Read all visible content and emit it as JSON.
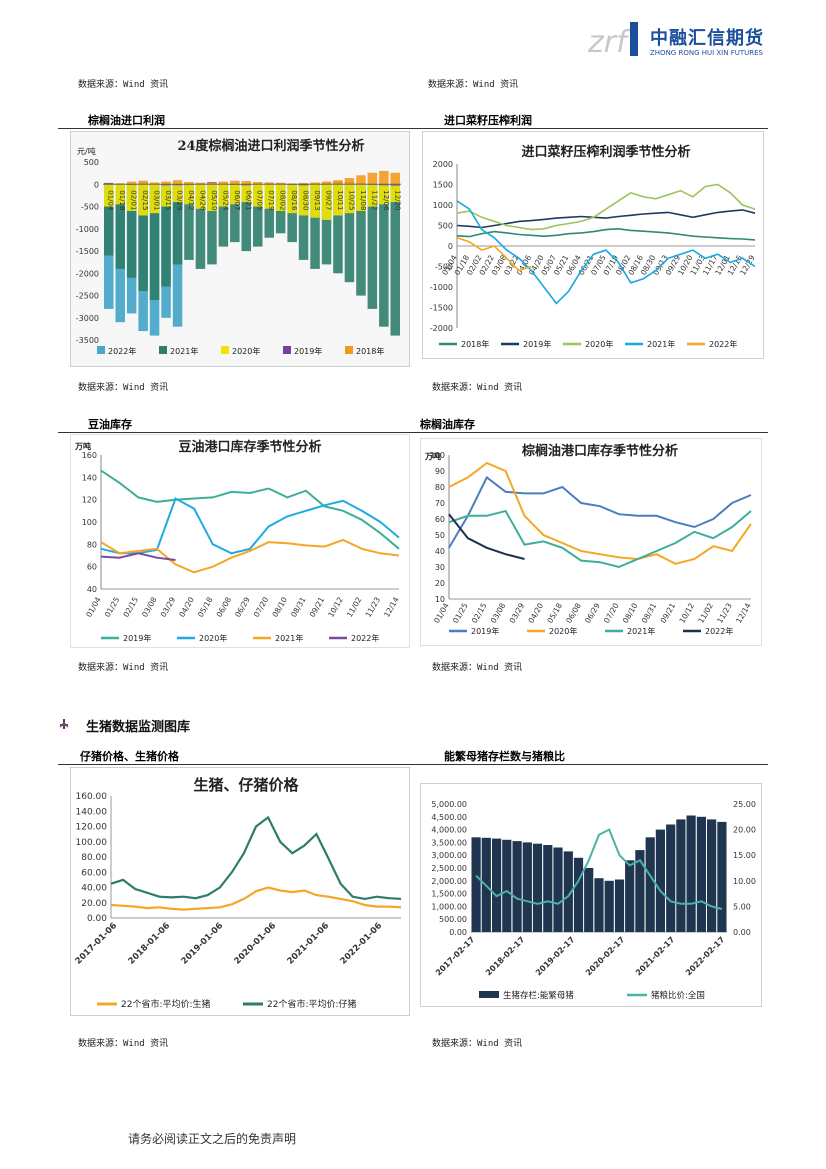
{
  "header": {
    "logo_mark": "zrf",
    "logo_cn": "中融汇信期货",
    "logo_en": "ZHONG RONG HUI XIN FUTURES"
  },
  "sources": {
    "top_left": "数据来源：Wind 资讯",
    "top_right": "数据来源：Wind 资讯",
    "row1_left": "数据来源：Wind 资讯",
    "row1_right": "数据来源：Wind 资讯",
    "row2_left": "数据来源：Wind 资讯",
    "row2_right": "数据来源：Wind 资讯",
    "row3_left": "数据来源：Wind 资讯",
    "row3_right": "数据来源：Wind 资讯"
  },
  "sections": {
    "palm_profit": "棕榈油进口利润",
    "rapeseed_profit": "进口菜籽压榨利润",
    "soy_stock": "豆油库存",
    "palm_stock": "棕榈油库存",
    "hog_header": "生猪数据监测图库",
    "piglet_price": "仔猪价格、生猪价格",
    "sow_ratio": "能繁母猪存栏数与猪粮比"
  },
  "footer": {
    "disclaimer": "请务必阅读正文之后的免责声明"
  },
  "chart_data": [
    {
      "id": "palm_profit",
      "type": "bar",
      "title": "24度棕榈油进口利润季节性分析",
      "ylabel": "元/吨",
      "ylim": [
        -3500,
        500
      ],
      "yticks": [
        500,
        0,
        -500,
        -1000,
        -1500,
        -2000,
        -2500,
        -3000,
        -3500
      ],
      "categories": [
        "01/04",
        "01/18",
        "02/01",
        "02/15",
        "03/01",
        "03/15",
        "03/29",
        "04/12",
        "04/26",
        "05/10",
        "05/24",
        "06/07",
        "06/21",
        "07/05",
        "07/19",
        "08/02",
        "08/16",
        "08/30",
        "09/13",
        "09/27",
        "10/11",
        "10/25",
        "11/08",
        "11/22",
        "12/06",
        "12/20"
      ],
      "series": [
        {
          "name": "2022年",
          "color": "#4aa8c8",
          "values": [
            -2800,
            -3100,
            -2900,
            -3300,
            -3400,
            -3000,
            -3200,
            null,
            null,
            null,
            null,
            null,
            null,
            null,
            null,
            null,
            null,
            null,
            null,
            null,
            null,
            null,
            null,
            null,
            null,
            null
          ]
        },
        {
          "name": "2021年",
          "color": "#2e7d6b",
          "values": [
            -1600,
            -1900,
            -2100,
            -2400,
            -2600,
            -2300,
            -1800,
            -1700,
            -1900,
            -1800,
            -1400,
            -1300,
            -1500,
            -1400,
            -1200,
            -1100,
            -1300,
            -1700,
            -1900,
            -1800,
            -2000,
            -2200,
            -2500,
            -2800,
            -3200,
            -3400
          ]
        },
        {
          "name": "2020年",
          "color": "#f2e600",
          "values": [
            -500,
            -450,
            -600,
            -700,
            -650,
            -500,
            -400,
            -450,
            -550,
            -600,
            -500,
            -450,
            -400,
            -500,
            -550,
            -600,
            -650,
            -700,
            -750,
            -800,
            -700,
            -650,
            -600,
            -500,
            -450,
            -400
          ]
        },
        {
          "name": "2019年",
          "color": "#7a3fa0",
          "values": [
            30,
            20,
            10,
            40,
            20,
            0,
            -20,
            10,
            30,
            50,
            20,
            10,
            -10,
            20,
            40,
            30,
            10,
            0,
            20,
            40,
            60,
            50,
            30,
            10,
            0,
            -30
          ]
        },
        {
          "name": "2018年",
          "color": "#f29a1e",
          "values": [
            10,
            20,
            60,
            80,
            40,
            60,
            90,
            50,
            30,
            40,
            60,
            80,
            70,
            50,
            40,
            30,
            20,
            30,
            40,
            60,
            90,
            140,
            200,
            260,
            300,
            260
          ]
        }
      ]
    },
    {
      "id": "rapeseed_profit",
      "type": "line",
      "title": "进口菜籽压榨利润季节性分析",
      "ylim": [
        -2000,
        2000
      ],
      "yticks": [
        2000,
        1500,
        1000,
        500,
        0,
        -500,
        -1000,
        -1500,
        -2000
      ],
      "categories": [
        "01/04",
        "01/18",
        "02/02",
        "02/22",
        "03/08",
        "03/22",
        "04/06",
        "04/20",
        "05/07",
        "05/21",
        "06/04",
        "06/21",
        "07/05",
        "07/19",
        "08/02",
        "08/16",
        "08/30",
        "09/13",
        "09/29",
        "10/20",
        "11/03",
        "11/17",
        "12/01",
        "12/15",
        "12/29"
      ],
      "series": [
        {
          "name": "2018年",
          "color": "#2e8b6e",
          "values": [
            250,
            230,
            300,
            350,
            320,
            280,
            260,
            240,
            260,
            300,
            320,
            350,
            400,
            420,
            380,
            360,
            340,
            320,
            280,
            240,
            220,
            200,
            180,
            170,
            150
          ]
        },
        {
          "name": "2019年",
          "color": "#1f3a5f",
          "values": [
            500,
            480,
            450,
            500,
            550,
            600,
            620,
            650,
            680,
            700,
            720,
            700,
            680,
            720,
            750,
            780,
            800,
            820,
            760,
            700,
            760,
            820,
            850,
            880,
            800
          ]
        },
        {
          "name": "2020年",
          "color": "#9cc45a",
          "values": [
            800,
            850,
            700,
            600,
            500,
            450,
            400,
            420,
            500,
            550,
            600,
            700,
            900,
            1100,
            1300,
            1200,
            1150,
            1250,
            1350,
            1200,
            1450,
            1500,
            1300,
            1000,
            900
          ]
        },
        {
          "name": "2021年",
          "color": "#1aa8e0",
          "values": [
            1100,
            900,
            400,
            200,
            -100,
            -300,
            -600,
            -1000,
            -1400,
            -1100,
            -600,
            -200,
            -100,
            -400,
            -900,
            -800,
            -600,
            -300,
            -200,
            -100,
            -300,
            -200,
            -400,
            -300,
            -500
          ]
        },
        {
          "name": "2022年",
          "color": "#f5a623",
          "values": [
            200,
            100,
            -100,
            0,
            -300,
            -600,
            -500,
            null,
            null,
            null,
            null,
            null,
            null,
            null,
            null,
            null,
            null,
            null,
            null,
            null,
            null,
            null,
            null,
            null,
            null
          ]
        }
      ]
    },
    {
      "id": "soy_stock",
      "type": "line",
      "title": "豆油港口库存季节性分析",
      "ylabel": "万吨",
      "ylim": [
        40,
        160
      ],
      "yticks": [
        160,
        140,
        120,
        100,
        80,
        60,
        40
      ],
      "categories": [
        "01/04",
        "01/25",
        "02/15",
        "03/08",
        "03/29",
        "04/20",
        "05/18",
        "06/08",
        "06/29",
        "07/20",
        "08/10",
        "08/31",
        "09/21",
        "10/12",
        "11/02",
        "11/23",
        "12/14"
      ],
      "series": [
        {
          "name": "2019年",
          "color": "#3dae9a",
          "values": [
            146,
            135,
            122,
            118,
            120,
            121,
            122,
            127,
            126,
            130,
            122,
            128,
            114,
            110,
            102,
            90,
            76
          ]
        },
        {
          "name": "2020年",
          "color": "#21a9e1",
          "values": [
            76,
            72,
            72,
            75,
            121,
            112,
            80,
            72,
            76,
            96,
            105,
            110,
            115,
            119,
            110,
            100,
            86
          ]
        },
        {
          "name": "2021年",
          "color": "#f5a623",
          "values": [
            82,
            72,
            74,
            76,
            62,
            55,
            60,
            68,
            74,
            82,
            81,
            79,
            78,
            84,
            76,
            72,
            70
          ]
        },
        {
          "name": "2022年",
          "color": "#7a4aa0",
          "values": [
            69,
            68,
            72,
            68,
            66,
            null,
            null,
            null,
            null,
            null,
            null,
            null,
            null,
            null,
            null,
            null,
            null
          ]
        }
      ]
    },
    {
      "id": "palm_stock",
      "type": "line",
      "title": "棕榈油港口库存季节性分析",
      "ylabel": "万吨",
      "ylim": [
        10,
        100
      ],
      "yticks": [
        100,
        90,
        80,
        70,
        60,
        50,
        40,
        30,
        20,
        10
      ],
      "categories": [
        "01/04",
        "01/25",
        "02/15",
        "03/08",
        "03/29",
        "04/20",
        "05/18",
        "06/08",
        "06/29",
        "07/20",
        "08/10",
        "08/31",
        "09/21",
        "10/12",
        "11/02",
        "11/23",
        "12/14"
      ],
      "series": [
        {
          "name": "2019年",
          "color": "#4a7fbf",
          "values": [
            42,
            62,
            86,
            77,
            76,
            76,
            80,
            70,
            68,
            63,
            62,
            62,
            58,
            55,
            60,
            70,
            75
          ]
        },
        {
          "name": "2020年",
          "color": "#f5a623",
          "values": [
            80,
            86,
            95,
            90,
            62,
            50,
            45,
            40,
            38,
            36,
            35,
            38,
            32,
            35,
            43,
            40,
            57
          ]
        },
        {
          "name": "2021年",
          "color": "#3dae9a",
          "values": [
            58,
            62,
            62,
            65,
            44,
            46,
            42,
            34,
            33,
            30,
            35,
            40,
            45,
            52,
            48,
            55,
            65
          ]
        },
        {
          "name": "2022年",
          "color": "#1f2f4f",
          "values": [
            63,
            48,
            42,
            38,
            35,
            null,
            null,
            null,
            null,
            null,
            null,
            null,
            null,
            null,
            null,
            null,
            null
          ]
        }
      ]
    },
    {
      "id": "hog_piglet",
      "type": "line",
      "title": "生猪、仔猪价格",
      "ylim": [
        0,
        160
      ],
      "yticks": [
        "160.00",
        "140.00",
        "120.00",
        "100.00",
        "80.00",
        "60.00",
        "40.00",
        "20.00",
        "0.00"
      ],
      "xticks": [
        "2017-01-06",
        "2018-01-06",
        "2019-01-06",
        "2020-01-06",
        "2021-01-06",
        "2022-01-06"
      ],
      "series": [
        {
          "name": "22个省市:平均价:生猪",
          "color": "#f5a623",
          "values": [
            17,
            16,
            15,
            13,
            14,
            12,
            11,
            12,
            13,
            14,
            18,
            25,
            35,
            40,
            36,
            34,
            36,
            30,
            28,
            25,
            22,
            17,
            15,
            15,
            14
          ]
        },
        {
          "name": "22个省市:平均价:仔猪",
          "color": "#2e7d6b",
          "values": [
            45,
            50,
            38,
            33,
            28,
            27,
            28,
            26,
            30,
            40,
            60,
            85,
            120,
            132,
            100,
            85,
            95,
            110,
            78,
            45,
            28,
            25,
            28,
            26,
            25
          ]
        }
      ]
    },
    {
      "id": "sow_ratio",
      "type": "bar",
      "title": "",
      "ylim_left": [
        0,
        5000
      ],
      "yticks_left": [
        "5,000.00",
        "4,500.00",
        "4,000.00",
        "3,500.00",
        "3,000.00",
        "2,500.00",
        "2,000.00",
        "1,500.00",
        "1,000.00",
        "500.00",
        "0.00"
      ],
      "ylim_right": [
        0,
        25
      ],
      "yticks_right": [
        "25.00",
        "20.00",
        "15.00",
        "10.00",
        "5.00",
        "0.00"
      ],
      "xticks": [
        "2017-02-17",
        "2018-02-17",
        "2019-02-17",
        "2020-02-17",
        "2021-02-17",
        "2022-02-17"
      ],
      "series": [
        {
          "name": "生猪存栏:能繁母猪",
          "color": "#1f3550",
          "values": [
            3700,
            3680,
            3650,
            3600,
            3550,
            3500,
            3450,
            3400,
            3300,
            3150,
            2900,
            2500,
            2100,
            2000,
            2050,
            2800,
            3200,
            3700,
            4000,
            4200,
            4400,
            4550,
            4500,
            4400,
            4300
          ]
        },
        {
          "name": "猪粮比价:全国",
          "color": "#4ab3a6",
          "values": [
            11,
            9,
            7,
            8,
            6.5,
            6,
            5.5,
            6,
            5.5,
            7,
            10,
            14,
            19,
            20,
            15,
            13,
            14,
            11,
            8,
            6,
            5.5,
            5.5,
            6,
            5,
            4.5
          ]
        }
      ]
    }
  ]
}
